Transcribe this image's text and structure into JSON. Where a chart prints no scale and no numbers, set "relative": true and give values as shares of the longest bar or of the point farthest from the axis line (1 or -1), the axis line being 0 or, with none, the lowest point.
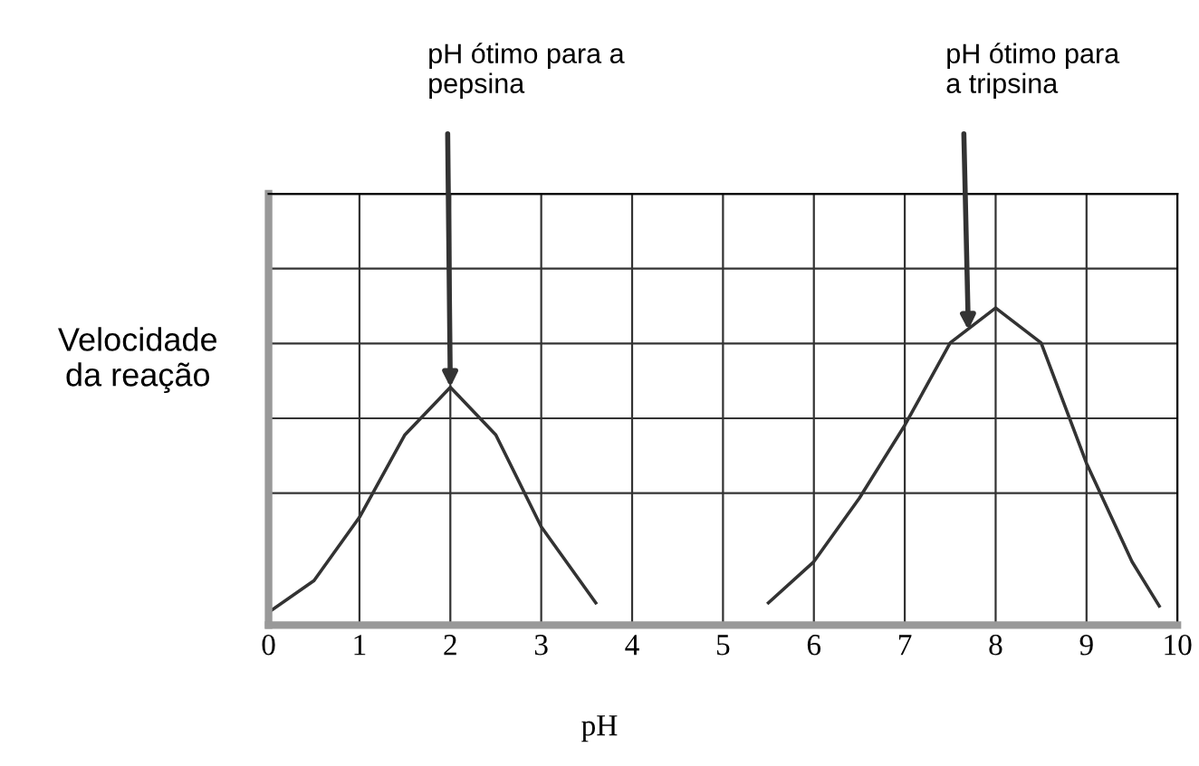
{
  "chart_data": {
    "type": "line",
    "relative": true,
    "xlabel": "pH",
    "ylabel": "Velocidade\nda reação",
    "xlim": [
      0,
      10
    ],
    "xticks": [
      0,
      1,
      2,
      3,
      4,
      5,
      6,
      7,
      8,
      9,
      10
    ],
    "grid": true,
    "color": "#333333",
    "series": [
      {
        "x": [
          0,
          0.5,
          1,
          1.5,
          2,
          2.5,
          3,
          3.6
        ],
        "values": [
          0.04,
          0.14,
          0.34,
          0.6,
          0.75,
          0.6,
          0.31,
          0.07
        ]
      },
      {
        "x": [
          5.5,
          6,
          6.5,
          7,
          7.5,
          8,
          8.5,
          9,
          9.5,
          9.8
        ],
        "values": [
          0.07,
          0.2,
          0.4,
          0.63,
          0.89,
          1.0,
          0.89,
          0.51,
          0.2,
          0.06
        ]
      }
    ],
    "annotations": [
      {
        "text": "pH ótimo para a\npepsina",
        "x": 2,
        "y": 0.75
      },
      {
        "text": "pH ótimo para\na tripsina",
        "x": 7.7,
        "y": 0.93
      }
    ]
  }
}
